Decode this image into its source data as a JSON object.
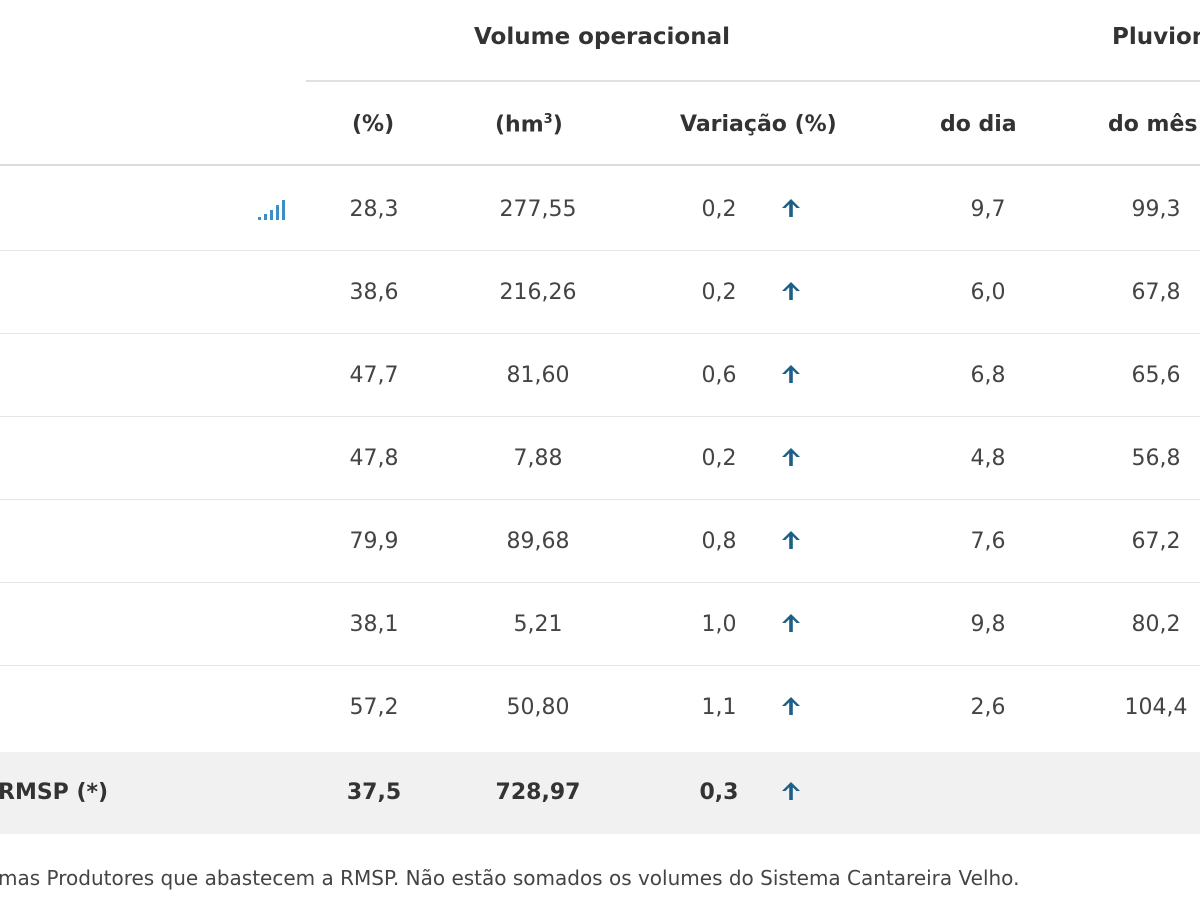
{
  "header": {
    "volume_group": "Volume operacional",
    "pluv_group": "Pluvion",
    "col_pct": "(%)",
    "col_hm3_base": "(hm",
    "col_hm3_exp": "3",
    "col_hm3_close": ")",
    "col_var": "Variação (%)",
    "col_dia": "do dia",
    "col_mes": "do mês"
  },
  "rows": [
    {
      "pct": "28,3",
      "hm3": "277,55",
      "var": "0,2",
      "dia": "9,7",
      "mes": "99,3"
    },
    {
      "pct": "38,6",
      "hm3": "216,26",
      "var": "0,2",
      "dia": "6,0",
      "mes": "67,8"
    },
    {
      "pct": "47,7",
      "hm3": "81,60",
      "var": "0,6",
      "dia": "6,8",
      "mes": "65,6"
    },
    {
      "pct": "47,8",
      "hm3": "7,88",
      "var": "0,2",
      "dia": "4,8",
      "mes": "56,8"
    },
    {
      "pct": "79,9",
      "hm3": "89,68",
      "var": "0,8",
      "dia": "7,6",
      "mes": "67,2"
    },
    {
      "pct": "38,1",
      "hm3": "5,21",
      "var": "1,0",
      "dia": "9,8",
      "mes": "80,2"
    },
    {
      "pct": "57,2",
      "hm3": "50,80",
      "var": "1,1",
      "dia": "2,6",
      "mes": "104,4"
    }
  ],
  "total": {
    "label": "RMSP (*)",
    "pct": "37,5",
    "hm3": "728,97",
    "var": "0,3"
  },
  "footnote": "mas Produtores que abastecem a RMSP. Não estão somados os volumes do Sistema Cantareira Velho.",
  "icons": {
    "trend": "arrow-up-icon",
    "chart": "signal-bars-icon"
  },
  "colors": {
    "arrow": "#1d5f86",
    "signal": "#3a8fc4",
    "total_bg": "#f1f1f1"
  }
}
